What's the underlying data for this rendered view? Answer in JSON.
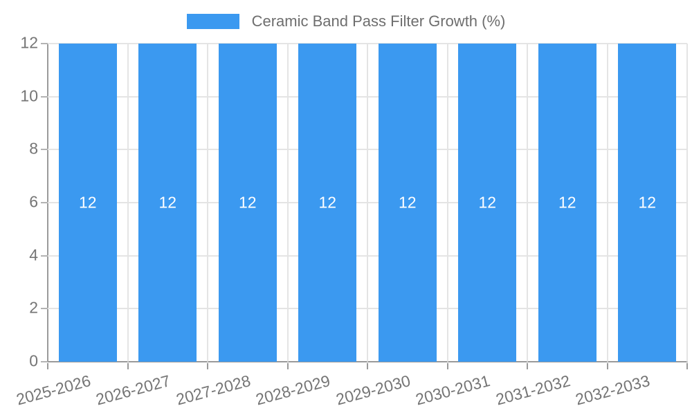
{
  "legend": {
    "label": "Ceramic Band Pass Filter Growth (%)"
  },
  "chart_data": {
    "type": "bar",
    "title": "Ceramic Band Pass Filter Growth (%)",
    "categories": [
      "2025-2026",
      "2026-2027",
      "2027-2028",
      "2028-2029",
      "2029-2030",
      "2030-2031",
      "2031-2032",
      "2032-2033"
    ],
    "values": [
      12,
      12,
      12,
      12,
      12,
      12,
      12,
      12
    ],
    "bar_labels": [
      "12",
      "12",
      "12",
      "12",
      "12",
      "12",
      "12",
      "12"
    ],
    "xlabel": "",
    "ylabel": "",
    "y_ticks": [
      0,
      2,
      4,
      6,
      8,
      10,
      12
    ],
    "ylim": [
      0,
      12
    ],
    "grid": true,
    "legend_position": "top",
    "x_label_rotation_deg": -15,
    "colors": {
      "bar": "#3B99F0",
      "axis": "#9a9a9a",
      "grid": "#e4e4e4",
      "tick_text": "#757575",
      "legend_text": "#6e6e6e",
      "bar_label_text": "#ffffff",
      "background": "#ffffff"
    }
  }
}
